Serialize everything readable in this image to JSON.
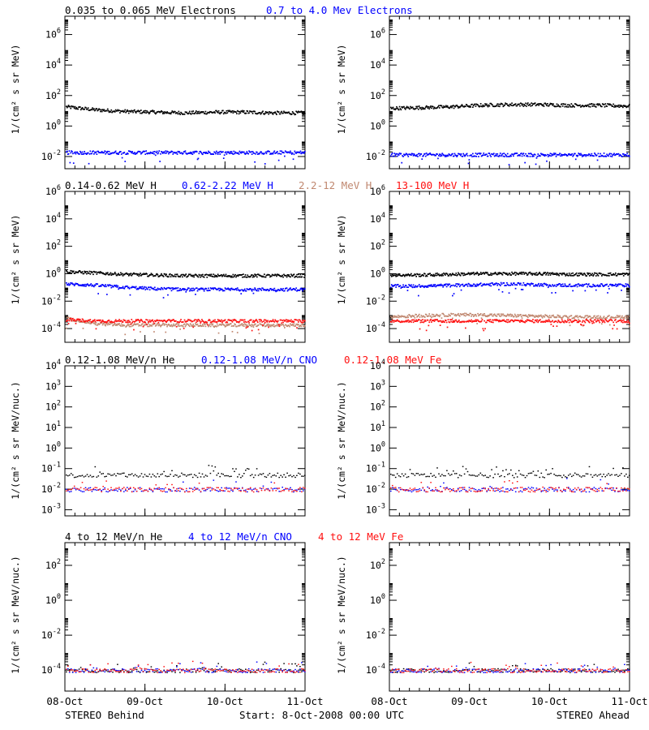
{
  "colors": {
    "black": "#000000",
    "blue": "#0000ff",
    "tan": "#c08870",
    "red": "#ff1010"
  },
  "rows": [
    {
      "legend": [
        {
          "text": "0.035 to 0.065 MeV Electrons",
          "color": "#000000"
        },
        {
          "text": "0.7 to 4.0 Mev Electrons",
          "color": "#0000ff"
        }
      ],
      "ylabel": "1/(cm² s sr MeV)"
    },
    {
      "legend": [
        {
          "text": "0.14-0.62 MeV H",
          "color": "#000000"
        },
        {
          "text": "0.62-2.22 MeV H",
          "color": "#0000ff"
        },
        {
          "text": "2.2-12 MeV H",
          "color": "#c08870"
        },
        {
          "text": "13-100 MeV H",
          "color": "#ff1010"
        }
      ],
      "ylabel": "1/(cm² s sr MeV)"
    },
    {
      "legend": [
        {
          "text": "0.12-1.08 MeV/n He",
          "color": "#000000"
        },
        {
          "text": "0.12-1.08 MeV/n CNO",
          "color": "#0000ff"
        },
        {
          "text": "0.12-1.08 MeV Fe",
          "color": "#ff1010"
        }
      ],
      "ylabel": "1/(cm² s sr MeV/nuc.)"
    },
    {
      "legend": [
        {
          "text": "4 to 12 MeV/n He",
          "color": "#000000"
        },
        {
          "text": "4 to 12 MeV/n CNO",
          "color": "#0000ff"
        },
        {
          "text": "4 to 12 MeV Fe",
          "color": "#ff1010"
        }
      ],
      "ylabel": "1/(cm² s sr MeV/nuc.)"
    }
  ],
  "footer": {
    "left": "STEREO Behind",
    "center": "Start:  8-Oct-2008 00:00 UTC",
    "right": "STEREO Ahead"
  },
  "chart_data": [
    {
      "type": "scatter",
      "panel": "electrons",
      "spacecraft": "STEREO Behind",
      "x_ticks": [
        "08-Oct",
        "09-Oct",
        "10-Oct",
        "11-Oct"
      ],
      "y_scale": "log",
      "ylim_exp": [
        -2.8,
        7.2
      ],
      "y_tick_exponents": [
        -2,
        0,
        2,
        4,
        6
      ],
      "series": [
        {
          "name": "0.035 to 0.065 MeV Electrons",
          "color": "#000000",
          "level_log10": [
            1.3,
            1.1,
            1.0,
            0.95,
            0.9,
            0.95,
            0.95,
            0.9,
            0.9
          ]
        },
        {
          "name": "0.7 to 4.0 Mev Electrons",
          "color": "#0000ff",
          "level_log10": [
            -1.7,
            -1.7,
            -1.7,
            -1.7,
            -1.7,
            -1.7,
            -1.7,
            -1.7,
            -1.7
          ]
        }
      ]
    },
    {
      "type": "scatter",
      "panel": "electrons",
      "spacecraft": "STEREO Ahead",
      "x_ticks": [
        "08-Oct",
        "09-Oct",
        "10-Oct",
        "11-Oct"
      ],
      "y_scale": "log",
      "ylim_exp": [
        -2.8,
        7.2
      ],
      "y_tick_exponents": [
        -2,
        0,
        2,
        4,
        6
      ],
      "series": [
        {
          "name": "0.035 to 0.065 MeV Electrons",
          "color": "#000000",
          "level_log10": [
            1.2,
            1.25,
            1.3,
            1.4,
            1.45,
            1.45,
            1.4,
            1.4,
            1.35
          ]
        },
        {
          "name": "0.7 to 4.0 Mev Electrons",
          "color": "#0000ff",
          "level_log10": [
            -1.85,
            -1.85,
            -1.85,
            -1.85,
            -1.85,
            -1.85,
            -1.85,
            -1.85,
            -1.85
          ]
        }
      ]
    },
    {
      "type": "scatter",
      "panel": "protons",
      "spacecraft": "STEREO Behind",
      "x_ticks": [
        "08-Oct",
        "09-Oct",
        "10-Oct",
        "11-Oct"
      ],
      "y_scale": "log",
      "ylim_exp": [
        -5.0,
        6.0
      ],
      "y_tick_exponents": [
        -4,
        -2,
        0,
        2,
        4,
        6
      ],
      "series": [
        {
          "name": "0.14-0.62 MeV H",
          "color": "#000000",
          "level_log10": [
            0.2,
            0.1,
            0.0,
            -0.05,
            -0.1,
            -0.1,
            -0.1,
            -0.1,
            -0.1
          ]
        },
        {
          "name": "0.62-2.22 MeV H",
          "color": "#0000ff",
          "level_log10": [
            -0.7,
            -0.8,
            -0.95,
            -1.05,
            -1.1,
            -1.1,
            -1.1,
            -1.1,
            -1.1
          ]
        },
        {
          "name": "2.2-12 MeV H",
          "color": "#c08870",
          "level_log10": [
            -3.2,
            -3.6,
            -3.7,
            -3.7,
            -3.7,
            -3.7,
            -3.7,
            -3.7,
            -3.7
          ]
        },
        {
          "name": "13-100 MeV H",
          "color": "#ff1010",
          "level_log10": [
            -3.3,
            -3.4,
            -3.4,
            -3.4,
            -3.4,
            -3.4,
            -3.4,
            -3.4,
            -3.4
          ]
        }
      ]
    },
    {
      "type": "scatter",
      "panel": "protons",
      "spacecraft": "STEREO Ahead",
      "x_ticks": [
        "08-Oct",
        "09-Oct",
        "10-Oct",
        "11-Oct"
      ],
      "y_scale": "log",
      "ylim_exp": [
        -5.0,
        6.0
      ],
      "y_tick_exponents": [
        -4,
        -2,
        0,
        2,
        4,
        6
      ],
      "series": [
        {
          "name": "0.14-0.62 MeV H",
          "color": "#000000",
          "level_log10": [
            -0.05,
            -0.05,
            0.0,
            0.05,
            0.05,
            0.05,
            0.0,
            0.0,
            0.0
          ]
        },
        {
          "name": "0.62-2.22 MeV H",
          "color": "#0000ff",
          "level_log10": [
            -0.85,
            -0.85,
            -0.8,
            -0.75,
            -0.7,
            -0.75,
            -0.8,
            -0.8,
            -0.8
          ]
        },
        {
          "name": "2.2-12 MeV H",
          "color": "#c08870",
          "level_log10": [
            -3.1,
            -3.0,
            -2.95,
            -2.95,
            -3.0,
            -3.05,
            -3.1,
            -3.1,
            -3.1
          ]
        },
        {
          "name": "13-100 MeV H",
          "color": "#ff1010",
          "level_log10": [
            -3.4,
            -3.4,
            -3.4,
            -3.4,
            -3.4,
            -3.4,
            -3.4,
            -3.4,
            -3.4
          ]
        }
      ]
    },
    {
      "type": "scatter",
      "panel": "low-energy ions",
      "spacecraft": "STEREO Behind",
      "x_ticks": [
        "08-Oct",
        "09-Oct",
        "10-Oct",
        "11-Oct"
      ],
      "y_scale": "log",
      "ylim_exp": [
        -3.3,
        4.0
      ],
      "y_tick_exponents": [
        -3,
        -2,
        -1,
        0,
        1,
        2,
        3,
        4
      ],
      "series": [
        {
          "name": "0.12-1.08 MeV/n He",
          "color": "#000000",
          "level_log10": [
            -1.3,
            -1.3,
            -1.3,
            -1.3,
            -1.3,
            -1.3,
            -1.3,
            -1.3,
            -1.3
          ]
        },
        {
          "name": "0.12-1.08 MeV/n CNO",
          "color": "#0000ff",
          "level_log10": [
            -2.0,
            -2.0,
            -2.0,
            -2.0,
            -2.0,
            -2.0,
            -2.0,
            -2.0,
            -2.0
          ]
        },
        {
          "name": "0.12-1.08 MeV Fe",
          "color": "#ff1010",
          "level_log10": [
            -2.0,
            -2.0,
            -2.0,
            -2.0,
            -2.0,
            -2.0,
            -2.0,
            -2.0,
            -2.0
          ]
        }
      ]
    },
    {
      "type": "scatter",
      "panel": "low-energy ions",
      "spacecraft": "STEREO Ahead",
      "x_ticks": [
        "08-Oct",
        "09-Oct",
        "10-Oct",
        "11-Oct"
      ],
      "y_scale": "log",
      "ylim_exp": [
        -3.3,
        4.0
      ],
      "y_tick_exponents": [
        -3,
        -2,
        -1,
        0,
        1,
        2,
        3,
        4
      ],
      "series": [
        {
          "name": "0.12-1.08 MeV/n He",
          "color": "#000000",
          "level_log10": [
            -1.3,
            -1.3,
            -1.3,
            -1.3,
            -1.3,
            -1.3,
            -1.3,
            -1.3,
            -1.3
          ]
        },
        {
          "name": "0.12-1.08 MeV/n CNO",
          "color": "#0000ff",
          "level_log10": [
            -2.0,
            -2.0,
            -2.0,
            -2.0,
            -2.0,
            -2.0,
            -2.0,
            -2.0,
            -2.0
          ]
        },
        {
          "name": "0.12-1.08 MeV Fe",
          "color": "#ff1010",
          "level_log10": [
            -2.0,
            -2.0,
            -2.0,
            -2.0,
            -2.0,
            -2.0,
            -2.0,
            -2.0,
            -2.0
          ]
        }
      ]
    },
    {
      "type": "scatter",
      "panel": "high-energy ions",
      "spacecraft": "STEREO Behind",
      "x_ticks": [
        "08-Oct",
        "09-Oct",
        "10-Oct",
        "11-Oct"
      ],
      "y_scale": "log",
      "ylim_exp": [
        -5.2,
        3.3
      ],
      "y_tick_exponents": [
        -4,
        -2,
        0,
        2
      ],
      "series": [
        {
          "name": "4 to 12 MeV/n He",
          "color": "#000000",
          "level_log10": [
            -4.0,
            -4.0,
            -4.0,
            -4.0,
            -4.0,
            -4.0,
            -4.0,
            -4.0,
            -4.0
          ]
        },
        {
          "name": "4 to 12 MeV/n CNO",
          "color": "#0000ff",
          "level_log10": [
            -4.0,
            -4.0,
            -4.0,
            -4.0,
            -4.0,
            -4.0,
            -4.0,
            -4.0,
            -4.0
          ]
        },
        {
          "name": "4 to 12 MeV Fe",
          "color": "#ff1010",
          "level_log10": [
            -4.0,
            -4.0,
            -4.0,
            -4.0,
            -4.0,
            -4.0,
            -4.0,
            -4.0,
            -4.0
          ]
        }
      ]
    },
    {
      "type": "scatter",
      "panel": "high-energy ions",
      "spacecraft": "STEREO Ahead",
      "x_ticks": [
        "08-Oct",
        "09-Oct",
        "10-Oct",
        "11-Oct"
      ],
      "y_scale": "log",
      "ylim_exp": [
        -5.2,
        3.3
      ],
      "y_tick_exponents": [
        -4,
        -2,
        0,
        2
      ],
      "series": [
        {
          "name": "4 to 12 MeV/n He",
          "color": "#000000",
          "level_log10": [
            -4.0,
            -4.0,
            -4.0,
            -4.0,
            -4.0,
            -4.0,
            -4.0,
            -4.0,
            -4.0
          ]
        },
        {
          "name": "4 to 12 MeV/n CNO",
          "color": "#0000ff",
          "level_log10": [
            -4.0,
            -4.0,
            -4.0,
            -4.0,
            -4.0,
            -4.0,
            -4.0,
            -4.0,
            -4.0
          ]
        },
        {
          "name": "4 to 12 MeV Fe",
          "color": "#ff1010",
          "level_log10": [
            -4.0,
            -4.0,
            -4.0,
            -4.0,
            -4.0,
            -4.0,
            -4.0,
            -4.0,
            -4.0
          ]
        }
      ]
    }
  ]
}
